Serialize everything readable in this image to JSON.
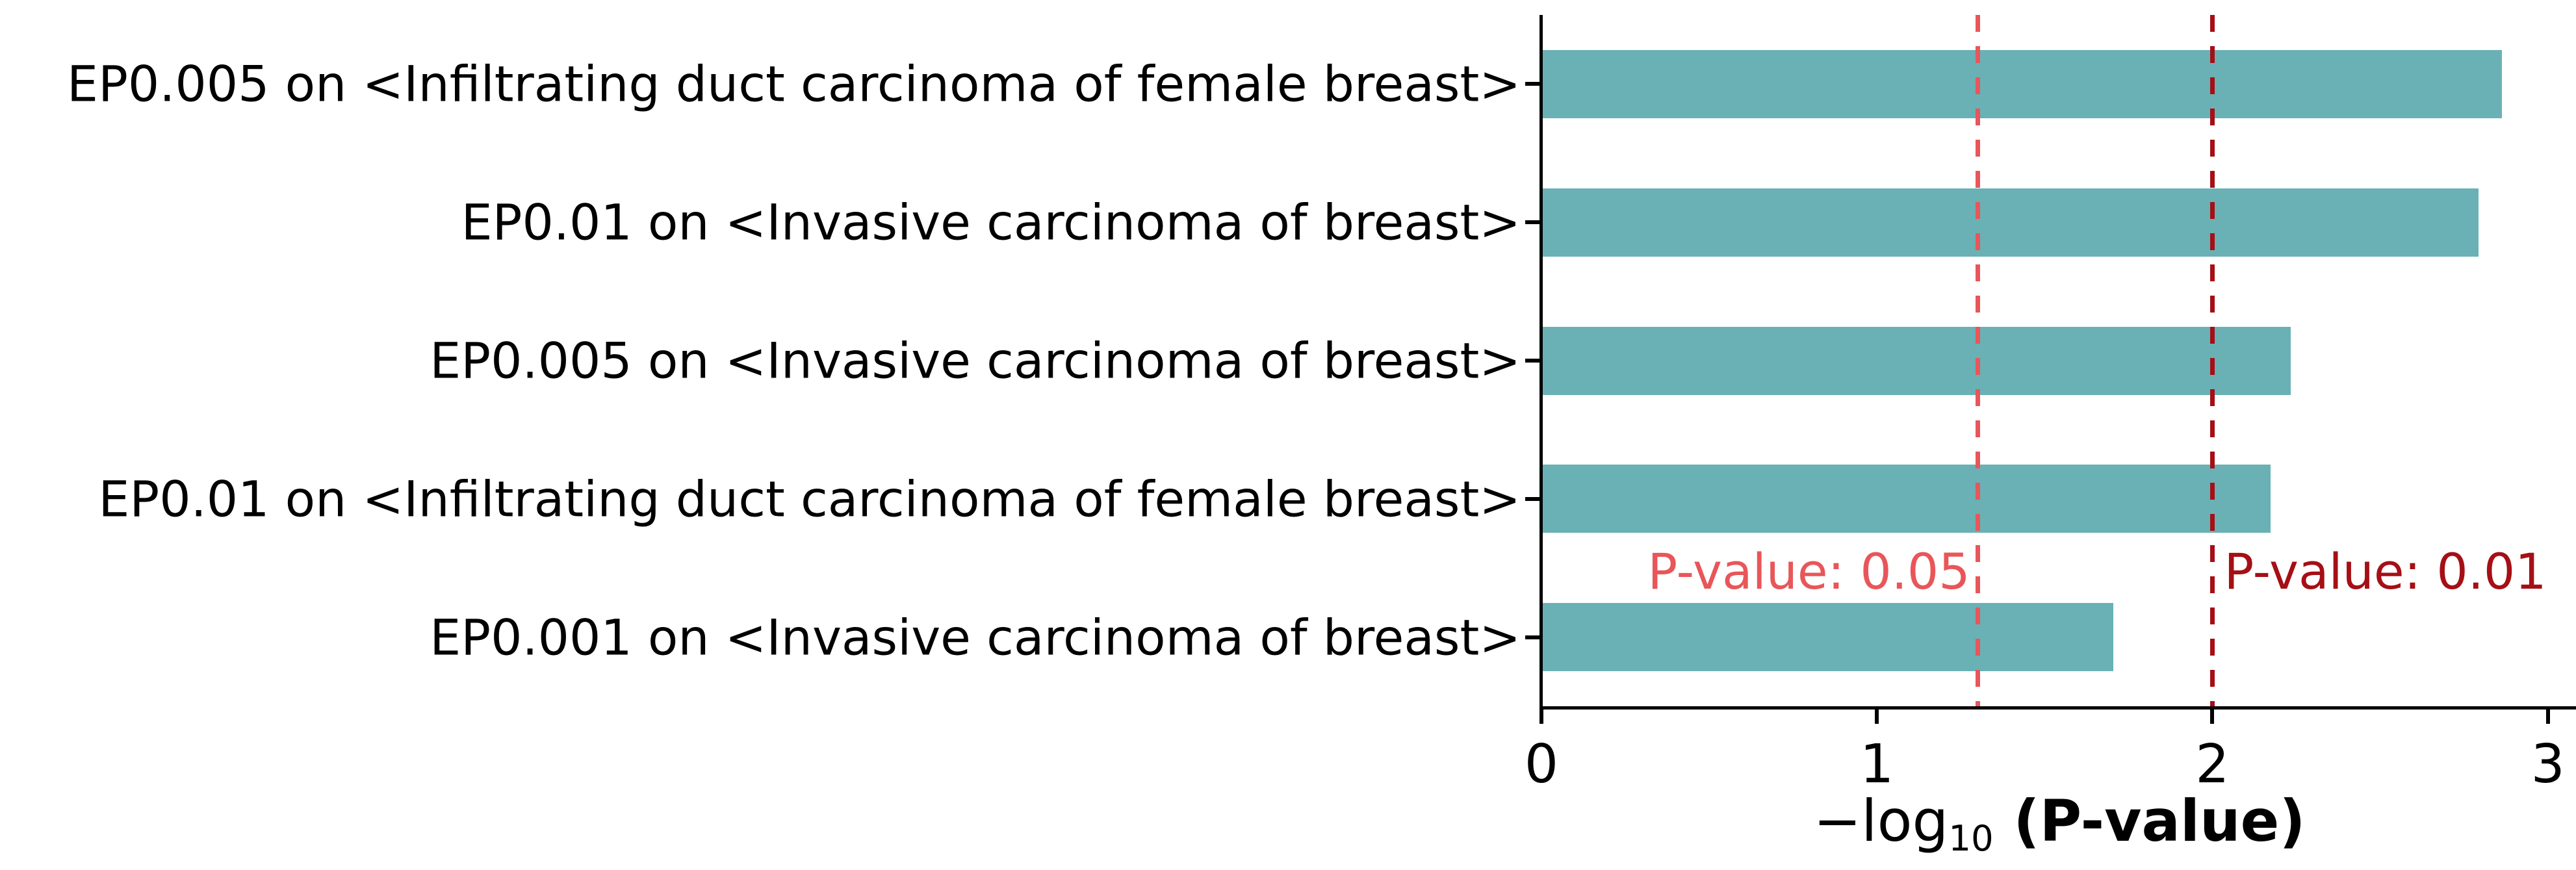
{
  "chart_data": {
    "type": "bar",
    "orientation": "horizontal",
    "categories": [
      "EP0.005 on <Infiltrating duct carcinoma of female breast>",
      "EP0.01 on <Invasive carcinoma of breast>",
      "EP0.005 on <Invasive carcinoma of breast>",
      "EP0.01 on <Infiltrating duct carcinoma of female breast>",
      "EP0.001 on <Invasive carcinoma of breast>"
    ],
    "values": [
      2.86,
      2.79,
      2.23,
      2.17,
      1.7
    ],
    "bar_color": "#6ab1b5",
    "xlabel_prefix": "−log",
    "xlabel_subscript": "10",
    "xlabel_suffix": " (P-value)",
    "xticks": [
      "0",
      "1",
      "2",
      "3"
    ],
    "xtick_values": [
      0,
      1,
      2,
      3
    ],
    "xlim": [
      0,
      3.08
    ],
    "grid": false,
    "legend": null,
    "reference_lines": [
      {
        "value": 1.301,
        "label": "P-value: 0.05",
        "color": "#e8565a",
        "label_side": "left"
      },
      {
        "value": 2.0,
        "label": "P-value: 0.01",
        "color": "#a50f15",
        "label_side": "right"
      }
    ],
    "axis_color": "#000000",
    "text_color": "#000000"
  }
}
